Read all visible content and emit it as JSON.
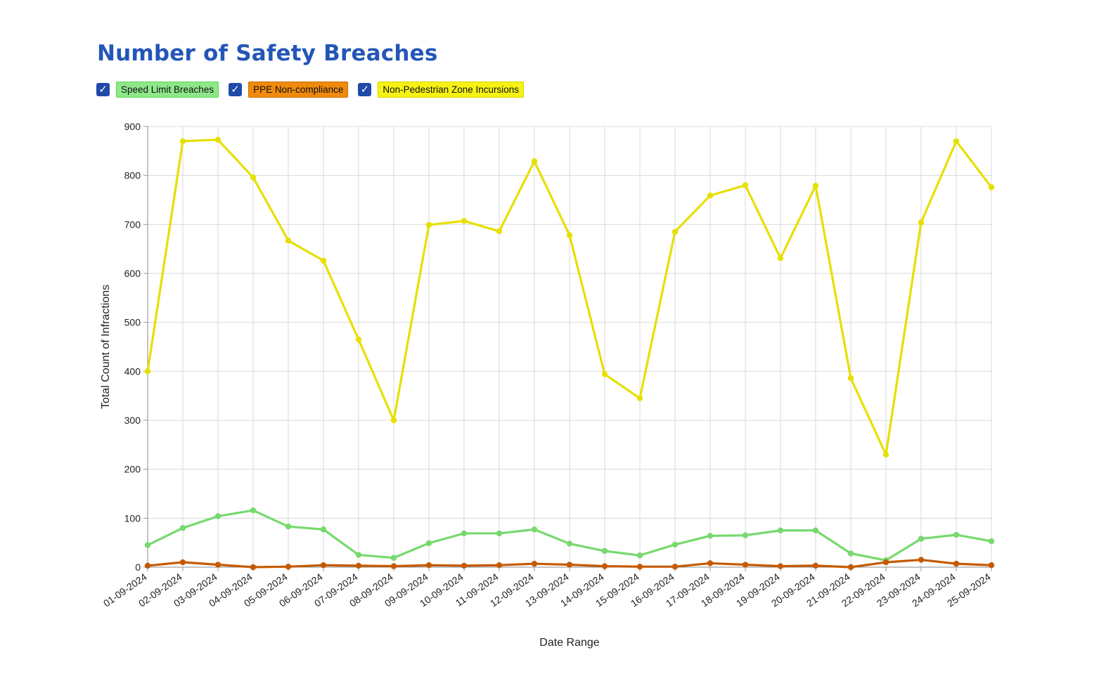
{
  "page": {
    "title": "Number of Safety Breaches"
  },
  "legend": {
    "items": [
      {
        "label": "Speed Limit Breaches",
        "checked_icon": "check-icon",
        "bg": "#8ee88a",
        "border": "#5fd65b"
      },
      {
        "label": "PPE Non-compliance",
        "checked_icon": "check-icon",
        "bg": "#f08a0c",
        "border": "#c86e00"
      },
      {
        "label": "Non-Pedestrian Zone Incursions",
        "checked_icon": "check-icon",
        "bg": "#f6f213",
        "border": "#d8d400"
      }
    ]
  },
  "chart_data": {
    "type": "line",
    "title": "Number of Safety Breaches",
    "xlabel": "Date Range",
    "ylabel": "Total Count of Infractions",
    "ylim": [
      0,
      900
    ],
    "yticks": [
      0,
      100,
      200,
      300,
      400,
      500,
      600,
      700,
      800,
      900
    ],
    "grid": true,
    "categories": [
      "01-09-2024",
      "02-09-2024",
      "03-09-2024",
      "04-09-2024",
      "05-09-2024",
      "06-09-2024",
      "07-09-2024",
      "08-09-2024",
      "09-09-2024",
      "10-09-2024",
      "11-09-2024",
      "12-09-2024",
      "13-09-2024",
      "14-09-2024",
      "15-09-2024",
      "16-09-2024",
      "17-09-2024",
      "18-09-2024",
      "19-09-2024",
      "20-09-2024",
      "21-09-2024",
      "22-09-2024",
      "23-09-2024",
      "24-09-2024",
      "25-09-2024"
    ],
    "series": [
      {
        "name": "Non-Pedestrian Zone Incursions",
        "color": "#e6e000",
        "values": [
          400,
          870,
          873,
          796,
          667,
          626,
          465,
          300,
          699,
          707,
          686,
          829,
          678,
          394,
          345,
          685,
          759,
          780,
          631,
          779,
          386,
          230,
          704,
          870,
          776
        ]
      },
      {
        "name": "Speed Limit Breaches",
        "color": "#77d96e",
        "values": [
          45,
          80,
          104,
          116,
          83,
          77,
          25,
          19,
          49,
          69,
          69,
          77,
          48,
          33,
          24,
          46,
          64,
          65,
          75,
          75,
          28,
          14,
          58,
          66,
          53
        ]
      },
      {
        "name": "PPE Non-compliance",
        "color": "#c55a00",
        "values": [
          3,
          10,
          5,
          0,
          1,
          4,
          3,
          2,
          4,
          3,
          4,
          7,
          5,
          2,
          1,
          1,
          8,
          5,
          2,
          3,
          0,
          10,
          15,
          7,
          4
        ]
      }
    ]
  }
}
